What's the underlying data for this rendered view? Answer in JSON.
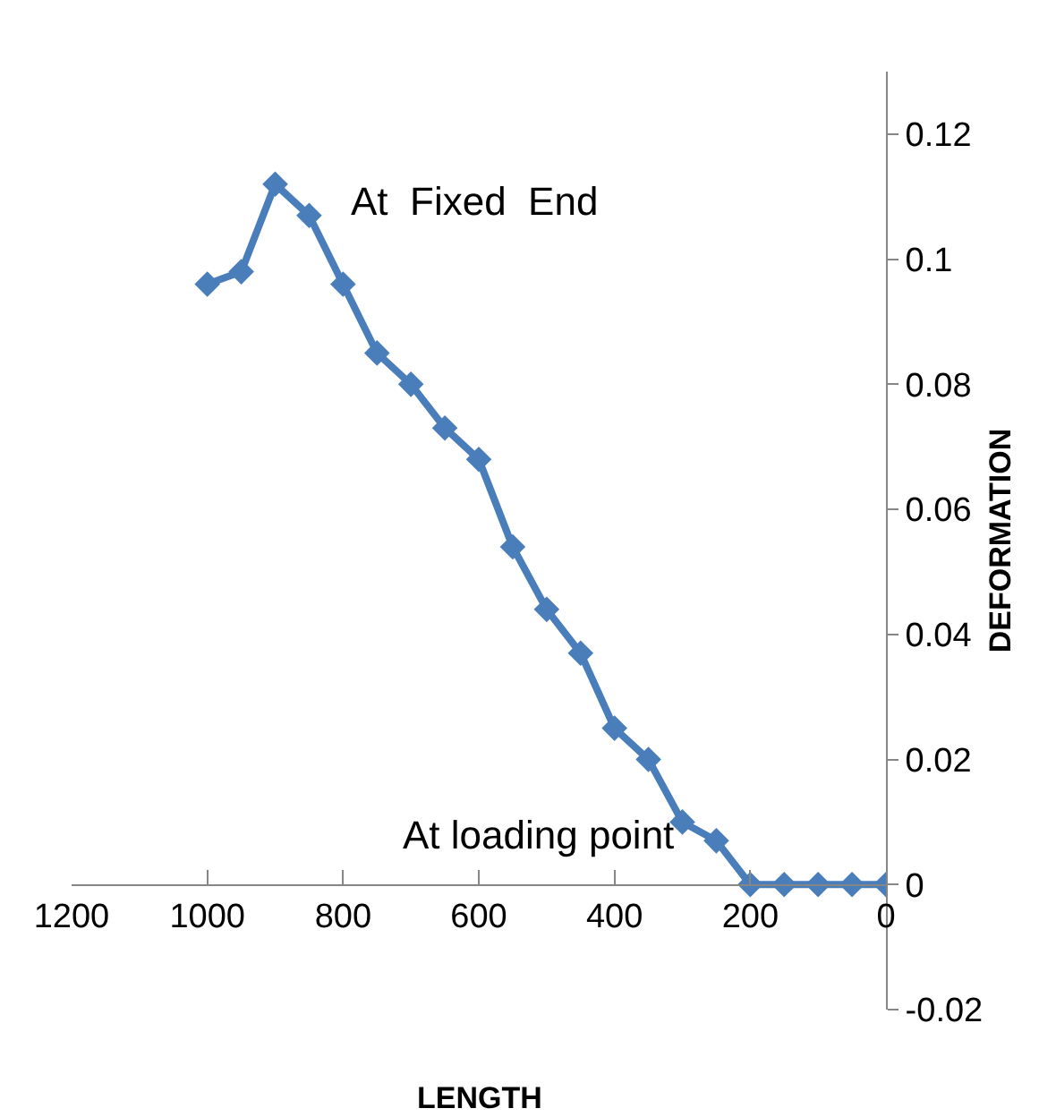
{
  "chart_data": {
    "type": "line",
    "xlabel": "LENGTH",
    "ylabel": "DEFORMATION",
    "x": [
      1000,
      950,
      900,
      850,
      800,
      750,
      700,
      650,
      600,
      550,
      500,
      450,
      400,
      350,
      300,
      250,
      200,
      150,
      100,
      50,
      0
    ],
    "series": [
      {
        "color": "#4a7ebb",
        "values": [
          0.096,
          0.098,
          0.112,
          0.107,
          0.096,
          0.085,
          0.08,
          0.073,
          0.068,
          0.054,
          0.044,
          0.037,
          0.025,
          0.02,
          0.01,
          0.007,
          0,
          0,
          0,
          0,
          0
        ]
      }
    ],
    "xlim": [
      1200,
      0
    ],
    "xticks": [
      1200,
      1000,
      800,
      600,
      400,
      200,
      0
    ],
    "ylim": [
      -0.02,
      0.13
    ],
    "yticks": [
      -0.02,
      0,
      0.02,
      0.04,
      0.06,
      0.08,
      0.1,
      0.12
    ],
    "annotations": [
      {
        "text": "At  Fixed  End",
        "x": 900,
        "y": 0.112
      },
      {
        "text": "At loading point",
        "x": 200,
        "y": 0
      }
    ],
    "marker": "diamond",
    "line_style": "solid"
  }
}
